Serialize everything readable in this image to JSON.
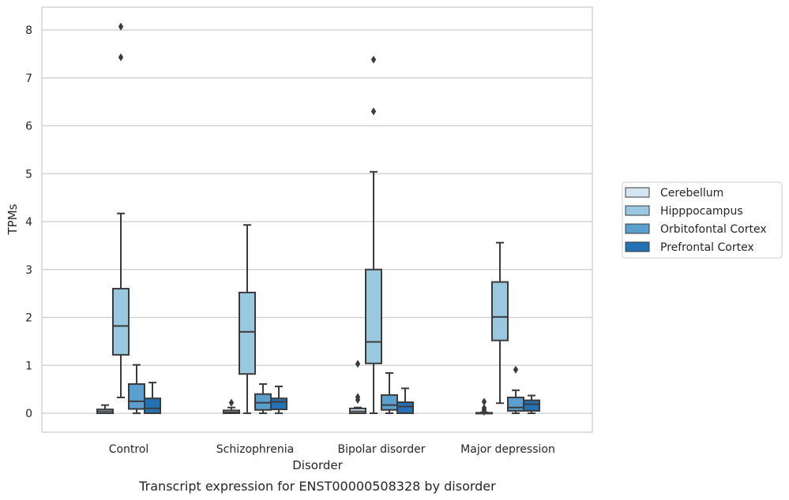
{
  "chart_data": {
    "type": "box",
    "title": "",
    "caption": "Transcript expression for ENST00000508328 by disorder",
    "xlabel": "Disorder",
    "ylabel": "TPMs",
    "ylim": [
      -0.4,
      8.5
    ],
    "yticks": [
      0,
      1,
      2,
      3,
      4,
      5,
      6,
      7,
      8
    ],
    "grid": "horizontal",
    "legend_position": "right",
    "categories": [
      "Control",
      "Schizophrenia",
      "Bipolar disorder",
      "Major depression"
    ],
    "series": [
      {
        "name": "Cerebellum",
        "color": "#d3e4f3",
        "boxes": [
          {
            "q1": 0.0,
            "median": 0.04,
            "q3": 0.08,
            "wmin": 0.0,
            "wmax": 0.17,
            "outliers": []
          },
          {
            "q1": 0.0,
            "median": 0.02,
            "q3": 0.06,
            "wmin": 0.0,
            "wmax": 0.12,
            "outliers": [
              0.22
            ]
          },
          {
            "q1": 0.0,
            "median": 0.04,
            "q3": 0.1,
            "wmin": 0.0,
            "wmax": 0.12,
            "outliers": [
              0.28,
              0.34,
              1.03
            ]
          },
          {
            "q1": 0.0,
            "median": 0.0,
            "q3": 0.01,
            "wmin": 0.0,
            "wmax": 0.02,
            "outliers": [
              0.03,
              0.07,
              0.11,
              0.24
            ]
          }
        ]
      },
      {
        "name": "Hipppocampus",
        "color": "#9ac8e0",
        "boxes": [
          {
            "q1": 1.22,
            "median": 1.82,
            "q3": 2.6,
            "wmin": 0.33,
            "wmax": 4.17,
            "outliers": [
              7.43,
              8.07
            ]
          },
          {
            "q1": 0.82,
            "median": 1.7,
            "q3": 2.52,
            "wmin": 0.0,
            "wmax": 3.93,
            "outliers": []
          },
          {
            "q1": 1.04,
            "median": 1.49,
            "q3": 3.0,
            "wmin": 0.0,
            "wmax": 5.04,
            "outliers": [
              6.3,
              7.38
            ]
          },
          {
            "q1": 1.52,
            "median": 2.01,
            "q3": 2.74,
            "wmin": 0.21,
            "wmax": 3.56,
            "outliers": []
          }
        ]
      },
      {
        "name": "Orbitofontal Cortex",
        "color": "#5a9fcd",
        "boxes": [
          {
            "q1": 0.09,
            "median": 0.25,
            "q3": 0.61,
            "wmin": 0.0,
            "wmax": 1.01,
            "outliers": []
          },
          {
            "q1": 0.07,
            "median": 0.22,
            "q3": 0.4,
            "wmin": 0.0,
            "wmax": 0.61,
            "outliers": []
          },
          {
            "q1": 0.07,
            "median": 0.17,
            "q3": 0.38,
            "wmin": 0.0,
            "wmax": 0.84,
            "outliers": []
          },
          {
            "q1": 0.05,
            "median": 0.12,
            "q3": 0.33,
            "wmin": 0.0,
            "wmax": 0.48,
            "outliers": [
              0.91
            ]
          }
        ]
      },
      {
        "name": "Prefrontal Cortex",
        "color": "#2471b5",
        "boxes": [
          {
            "q1": 0.0,
            "median": 0.1,
            "q3": 0.31,
            "wmin": 0.0,
            "wmax": 0.64,
            "outliers": []
          },
          {
            "q1": 0.08,
            "median": 0.24,
            "q3": 0.31,
            "wmin": 0.0,
            "wmax": 0.56,
            "outliers": []
          },
          {
            "q1": 0.0,
            "median": 0.14,
            "q3": 0.23,
            "wmin": 0.0,
            "wmax": 0.52,
            "outliers": []
          },
          {
            "q1": 0.05,
            "median": 0.19,
            "q3": 0.27,
            "wmin": 0.0,
            "wmax": 0.37,
            "outliers": []
          }
        ]
      }
    ]
  }
}
